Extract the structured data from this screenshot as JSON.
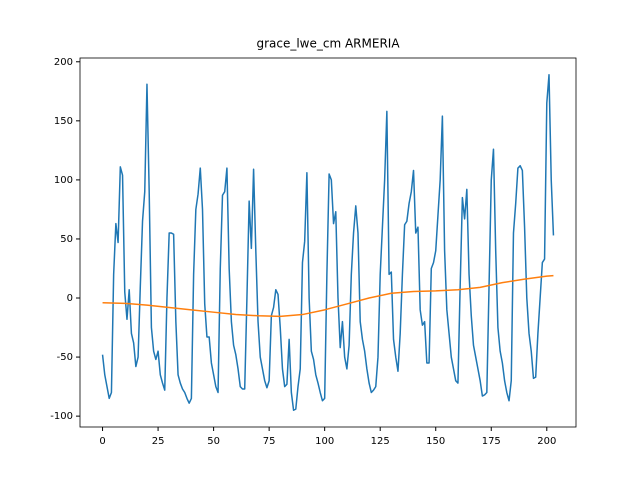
{
  "chart_data": {
    "type": "line",
    "title": "grace_lwe_cm ARMERIA",
    "xlim": [
      -10.15,
      213.15
    ],
    "xticks": [
      0,
      25,
      50,
      75,
      100,
      125,
      150,
      175,
      200
    ],
    "ylim": [
      -109.2,
      203.2
    ],
    "yticks": [
      -100,
      -50,
      0,
      50,
      100,
      150,
      200
    ],
    "series": [
      {
        "color": "#1f77b4",
        "x": [
          0,
          1,
          2,
          3,
          4,
          5,
          6,
          7,
          8,
          9,
          10,
          11,
          12,
          13,
          14,
          15,
          16,
          17,
          18,
          19,
          20,
          21,
          22,
          23,
          24,
          25,
          26,
          27,
          28,
          29,
          30,
          31,
          32,
          33,
          34,
          35,
          36,
          37,
          38,
          39,
          40,
          41,
          42,
          43,
          44,
          45,
          46,
          47,
          48,
          49,
          50,
          51,
          52,
          53,
          54,
          55,
          56,
          57,
          58,
          59,
          60,
          61,
          62,
          63,
          64,
          65,
          66,
          67,
          68,
          69,
          70,
          71,
          72,
          73,
          74,
          75,
          76,
          77,
          78,
          79,
          80,
          81,
          82,
          83,
          84,
          85,
          86,
          87,
          88,
          89,
          90,
          91,
          92,
          93,
          94,
          95,
          96,
          97,
          98,
          99,
          100,
          101,
          102,
          103,
          104,
          105,
          106,
          107,
          108,
          109,
          110,
          111,
          112,
          113,
          114,
          115,
          116,
          117,
          118,
          119,
          120,
          121,
          122,
          123,
          124,
          125,
          126,
          127,
          128,
          129,
          130,
          131,
          132,
          133,
          134,
          135,
          136,
          137,
          138,
          139,
          140,
          141,
          142,
          143,
          144,
          145,
          146,
          147,
          148,
          149,
          150,
          151,
          152,
          153,
          154,
          155,
          156,
          157,
          158,
          159,
          160,
          161,
          162,
          163,
          164,
          165,
          166,
          167,
          168,
          169,
          170,
          171,
          172,
          173,
          174,
          175,
          176,
          177,
          178,
          179,
          180,
          181,
          182,
          183,
          184,
          185,
          186,
          187,
          188,
          189,
          190,
          191,
          192,
          193,
          194,
          195,
          196,
          197,
          198,
          199,
          200,
          201,
          202,
          203
        ],
        "values": [
          -48,
          -65,
          -75,
          -85,
          -80,
          20,
          63,
          47,
          111,
          104,
          5,
          -18,
          7,
          -30,
          -38,
          -58,
          -50,
          10,
          65,
          90,
          181,
          90,
          -25,
          -45,
          -52,
          -45,
          -65,
          -72,
          -78,
          0,
          55,
          55,
          54,
          -20,
          -65,
          -72,
          -77,
          -80,
          -85,
          -89,
          -85,
          20,
          75,
          88,
          110,
          75,
          -5,
          -33,
          -33,
          -55,
          -65,
          -75,
          -80,
          25,
          87,
          90,
          110,
          25,
          -20,
          -40,
          -48,
          -60,
          -75,
          -77,
          -77,
          0,
          82,
          42,
          109,
          40,
          -20,
          -50,
          -60,
          -70,
          -76,
          -70,
          -15,
          -8,
          7,
          3,
          -25,
          -60,
          -75,
          -73,
          -35,
          -80,
          -95,
          -94,
          -75,
          -60,
          30,
          48,
          106,
          0,
          -45,
          -52,
          -65,
          -72,
          -80,
          -87,
          -85,
          20,
          105,
          100,
          63,
          73,
          0,
          -42,
          -20,
          -50,
          -60,
          -40,
          20,
          55,
          78,
          55,
          -20,
          -35,
          -45,
          -60,
          -72,
          -80,
          -78,
          -75,
          -50,
          20,
          60,
          100,
          158,
          20,
          22,
          -35,
          -50,
          -62,
          -30,
          20,
          62,
          65,
          80,
          90,
          108,
          55,
          60,
          -10,
          -23,
          -20,
          -55,
          -55,
          25,
          30,
          40,
          70,
          100,
          154,
          40,
          -10,
          -30,
          -50,
          -60,
          -70,
          -72,
          10,
          85,
          67,
          92,
          20,
          -15,
          -40,
          -50,
          -60,
          -70,
          -83,
          -82,
          -80,
          10,
          100,
          126,
          40,
          -25,
          -45,
          -55,
          -70,
          -80,
          -87,
          -70,
          55,
          80,
          110,
          112,
          108,
          60,
          0,
          -30,
          -45,
          -68,
          -67,
          -30,
          0,
          30,
          33,
          165,
          189,
          100,
          53
        ]
      },
      {
        "color": "#ff7f0e",
        "x": [
          0,
          10,
          20,
          30,
          40,
          50,
          60,
          70,
          80,
          90,
          100,
          110,
          120,
          130,
          140,
          150,
          160,
          170,
          180,
          190,
          200,
          203
        ],
        "values": [
          -4,
          -4.5,
          -6,
          -8,
          -10,
          -12,
          -14,
          -15,
          -15.5,
          -14,
          -10,
          -5,
          0,
          4,
          5.5,
          6,
          7,
          9,
          13,
          16,
          18.5,
          19
        ]
      }
    ]
  }
}
